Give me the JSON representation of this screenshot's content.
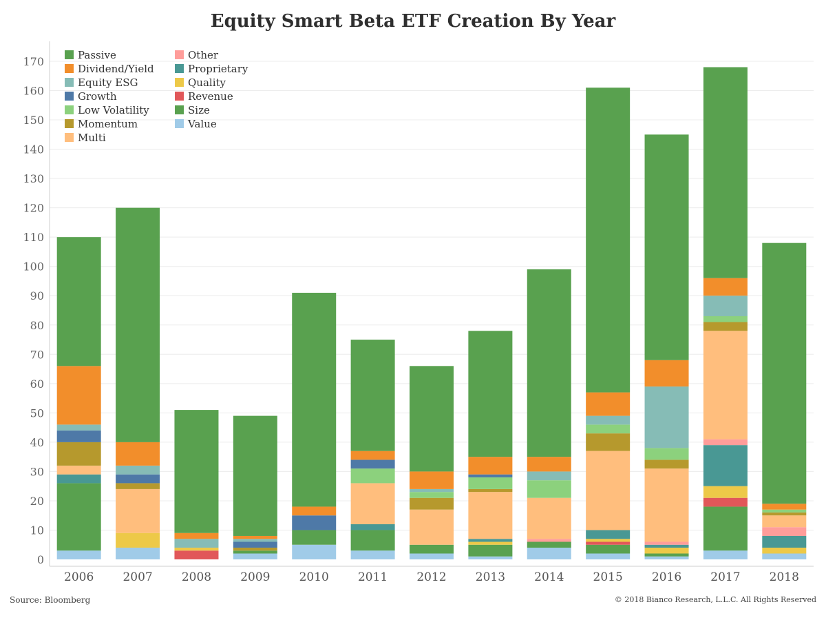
{
  "title": "Equity Smart Beta ETF Creation By Year",
  "source": "Source: Bloomberg",
  "copyright": "© 2018 Bianco Research, L.L.C. All Rights Reserved",
  "chart_data": {
    "type": "bar",
    "stacked": true,
    "title": "Equity Smart Beta ETF Creation By Year",
    "xlabel": "",
    "ylabel": "",
    "ylim": [
      0,
      175
    ],
    "yticks": [
      0,
      10,
      20,
      30,
      40,
      50,
      60,
      70,
      80,
      90,
      100,
      110,
      120,
      130,
      140,
      150,
      160,
      170
    ],
    "grid": "horizontal",
    "legend": "top-left",
    "categories": [
      "2006",
      "2007",
      "2008",
      "2009",
      "2010",
      "2011",
      "2012",
      "2013",
      "2014",
      "2015",
      "2016",
      "2017",
      "2018"
    ],
    "legend_order": [
      "Passive",
      "Dividend/Yield",
      "Equity ESG",
      "Growth",
      "Low Volatility",
      "Momentum",
      "Multi",
      "Other",
      "Proprietary",
      "Quality",
      "Revenue",
      "Size",
      "Value"
    ],
    "series": [
      {
        "name": "Value",
        "color": "#a0cbe8",
        "values": [
          3,
          4,
          0,
          2,
          5,
          3,
          2,
          1,
          4,
          2,
          1,
          3,
          2
        ]
      },
      {
        "name": "Size",
        "color": "#59a14f",
        "values": [
          23,
          0,
          0,
          1,
          5,
          7,
          3,
          4,
          2,
          3,
          1,
          15,
          0
        ]
      },
      {
        "name": "Revenue",
        "color": "#e15759",
        "values": [
          0,
          0,
          3,
          0,
          0,
          0,
          0,
          0,
          0,
          1,
          0,
          3,
          0
        ]
      },
      {
        "name": "Quality",
        "color": "#edc948",
        "values": [
          0,
          5,
          1,
          0,
          0,
          0,
          0,
          1,
          0,
          1,
          2,
          4,
          2
        ]
      },
      {
        "name": "Proprietary",
        "color": "#499894",
        "values": [
          3,
          0,
          0,
          0,
          0,
          2,
          0,
          1,
          0,
          3,
          1,
          14,
          4
        ]
      },
      {
        "name": "Other",
        "color": "#ff9d9a",
        "values": [
          0,
          0,
          0,
          0,
          0,
          0,
          0,
          0,
          1,
          0,
          1,
          2,
          3
        ]
      },
      {
        "name": "Multi",
        "color": "#ffbe7d",
        "values": [
          3,
          15,
          0,
          0,
          0,
          14,
          12,
          16,
          14,
          27,
          25,
          37,
          4
        ]
      },
      {
        "name": "Momentum",
        "color": "#b6992d",
        "values": [
          8,
          2,
          0,
          1,
          0,
          0,
          4,
          1,
          0,
          6,
          3,
          3,
          1
        ]
      },
      {
        "name": "Low Volatility",
        "color": "#8cd17d",
        "values": [
          0,
          0,
          0,
          0,
          0,
          5,
          2,
          4,
          6,
          3,
          4,
          2,
          1
        ]
      },
      {
        "name": "Growth",
        "color": "#4e79a7",
        "values": [
          4,
          3,
          0,
          2,
          5,
          3,
          0,
          1,
          0,
          0,
          0,
          0,
          0
        ]
      },
      {
        "name": "Equity ESG",
        "color": "#86bcb6",
        "values": [
          2,
          3,
          3,
          1,
          0,
          0,
          1,
          0,
          3,
          3,
          21,
          7,
          0
        ]
      },
      {
        "name": "Dividend/Yield",
        "color": "#f28e2b",
        "values": [
          20,
          8,
          2,
          1,
          3,
          3,
          6,
          6,
          5,
          8,
          9,
          6,
          2
        ]
      },
      {
        "name": "Passive",
        "color": "#59a14f",
        "values": [
          44,
          80,
          42,
          41,
          73,
          38,
          36,
          43,
          64,
          104,
          77,
          72,
          89
        ]
      }
    ]
  }
}
